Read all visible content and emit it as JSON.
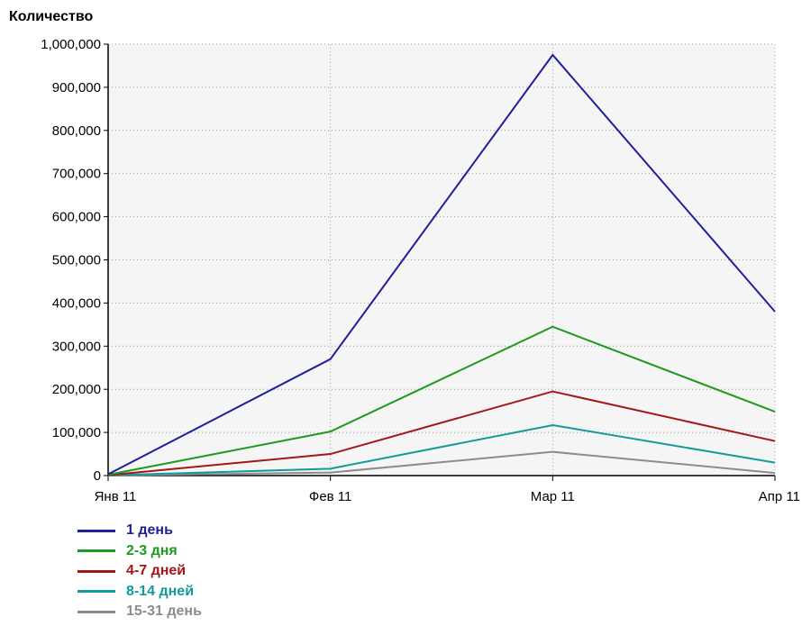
{
  "chart_data": {
    "type": "line",
    "ylabel": "Количество",
    "xlabel": "",
    "categories": [
      "Янв 11",
      "Фев 11",
      "Мар 11",
      "Апр 11"
    ],
    "ylim": [
      0,
      1000000
    ],
    "yticks": [
      0,
      100000,
      200000,
      300000,
      400000,
      500000,
      600000,
      700000,
      800000,
      900000,
      1000000
    ],
    "ytick_labels": [
      "0",
      "100,000",
      "200,000",
      "300,000",
      "400,000",
      "500,000",
      "600,000",
      "700,000",
      "800,000",
      "900,000",
      "1,000,000"
    ],
    "grid": true,
    "legend_position": "bottom-left",
    "series": [
      {
        "name": "1 день",
        "color": "#1f1f99",
        "values": [
          3000,
          270000,
          975000,
          380000
        ]
      },
      {
        "name": "2-3 дня",
        "color": "#1e9b1e",
        "values": [
          2000,
          102000,
          345000,
          148000
        ]
      },
      {
        "name": "4-7 дней",
        "color": "#a31717",
        "values": [
          1000,
          50000,
          195000,
          80000
        ]
      },
      {
        "name": "8-14 дней",
        "color": "#149a9a",
        "values": [
          500,
          16000,
          117000,
          30000
        ]
      },
      {
        "name": "15-31 день",
        "color": "#8c8c8c",
        "values": [
          200,
          7000,
          55000,
          6000
        ]
      }
    ]
  }
}
